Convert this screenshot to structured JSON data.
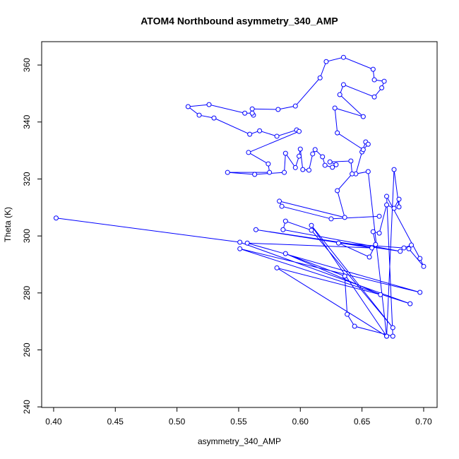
{
  "chart_data": {
    "type": "line",
    "marker": "circle",
    "title": "ATOM4 Northbound asymmetry_340_AMP",
    "x_label": "asymmetry_340_AMP",
    "y_label": "Theta (K)",
    "color": "#0000ff",
    "xlim": [
      0.3903,
      0.7109
    ],
    "ylim": [
      239.8,
      368.2
    ],
    "xticks": [
      {
        "value": 0.4,
        "label": "0.40"
      },
      0.45,
      {
        "value": 0.5,
        "label": "0.50"
      },
      0.55,
      {
        "value": 0.6,
        "label": "0.60"
      },
      0.65,
      {
        "value": 0.7,
        "label": "0.70"
      }
    ],
    "yticks": [
      240,
      260,
      280,
      300,
      320,
      340,
      360
    ],
    "x": [
      0.402,
      0.551,
      0.689,
      0.551,
      0.697,
      0.557,
      0.658,
      0.564,
      0.681,
      0.586,
      0.588,
      0.609,
      0.675,
      0.609,
      0.67,
      0.581,
      0.665,
      0.588,
      0.636,
      0.638,
      0.644,
      0.675,
      0.67,
      0.697,
      0.7,
      0.688,
      0.69,
      0.684,
      0.631,
      0.656,
      0.661,
      0.659,
      0.664,
      0.67,
      0.676,
      0.68,
      0.68,
      0.676,
      0.67,
      0.655,
      0.645,
      0.65,
      0.653,
      0.655,
      0.651,
      0.63,
      0.628,
      0.651,
      0.632,
      0.635,
      0.66,
      0.666,
      0.668,
      0.66,
      0.659,
      0.635,
      0.621,
      0.616,
      0.596,
      0.582,
      0.561,
      0.562,
      0.561,
      0.555,
      0.526,
      0.509,
      0.518,
      0.53,
      0.559,
      0.567,
      0.581,
      0.597,
      0.599,
      0.558,
      0.574,
      0.575,
      0.541,
      0.563,
      0.587,
      0.588,
      0.596,
      0.599,
      0.6,
      0.602,
      0.607,
      0.61,
      0.612,
      0.618,
      0.62,
      0.626,
      0.629,
      0.624,
      0.641,
      0.642,
      0.63,
      0.636,
      0.583,
      0.585,
      0.625,
      0.664
    ],
    "values": [
      306.3,
      297.8,
      276.2,
      295.5,
      280.2,
      297.5,
      295.8,
      302.2,
      294.6,
      302.2,
      305.2,
      302.0,
      267.8,
      303.7,
      264.8,
      288.8,
      279.4,
      293.8,
      285.9,
      272.5,
      268.3,
      264.8,
      313.9,
      292.1,
      289.3,
      295.5,
      296.8,
      295.8,
      297.5,
      292.6,
      297.0,
      301.5,
      301.0,
      310.9,
      309.7,
      312.9,
      310.2,
      323.3,
      264.8,
      322.6,
      321.8,
      329.5,
      333.0,
      332.2,
      330.3,
      336.2,
      344.9,
      341.9,
      349.6,
      353.1,
      348.8,
      352.0,
      354.3,
      354.8,
      358.5,
      362.7,
      361.2,
      355.5,
      345.6,
      344.4,
      344.6,
      342.4,
      343.1,
      343.1,
      346.1,
      345.4,
      342.4,
      341.4,
      335.7,
      336.9,
      335.0,
      337.2,
      336.7,
      329.3,
      325.3,
      322.3,
      322.3,
      321.6,
      322.3,
      329.0,
      324.0,
      328.0,
      330.5,
      323.3,
      323.1,
      328.8,
      330.3,
      327.8,
      324.8,
      324.1,
      325.0,
      326.0,
      326.3,
      321.8,
      315.9,
      306.5,
      312.2,
      310.4,
      306.0,
      306.9
    ]
  }
}
